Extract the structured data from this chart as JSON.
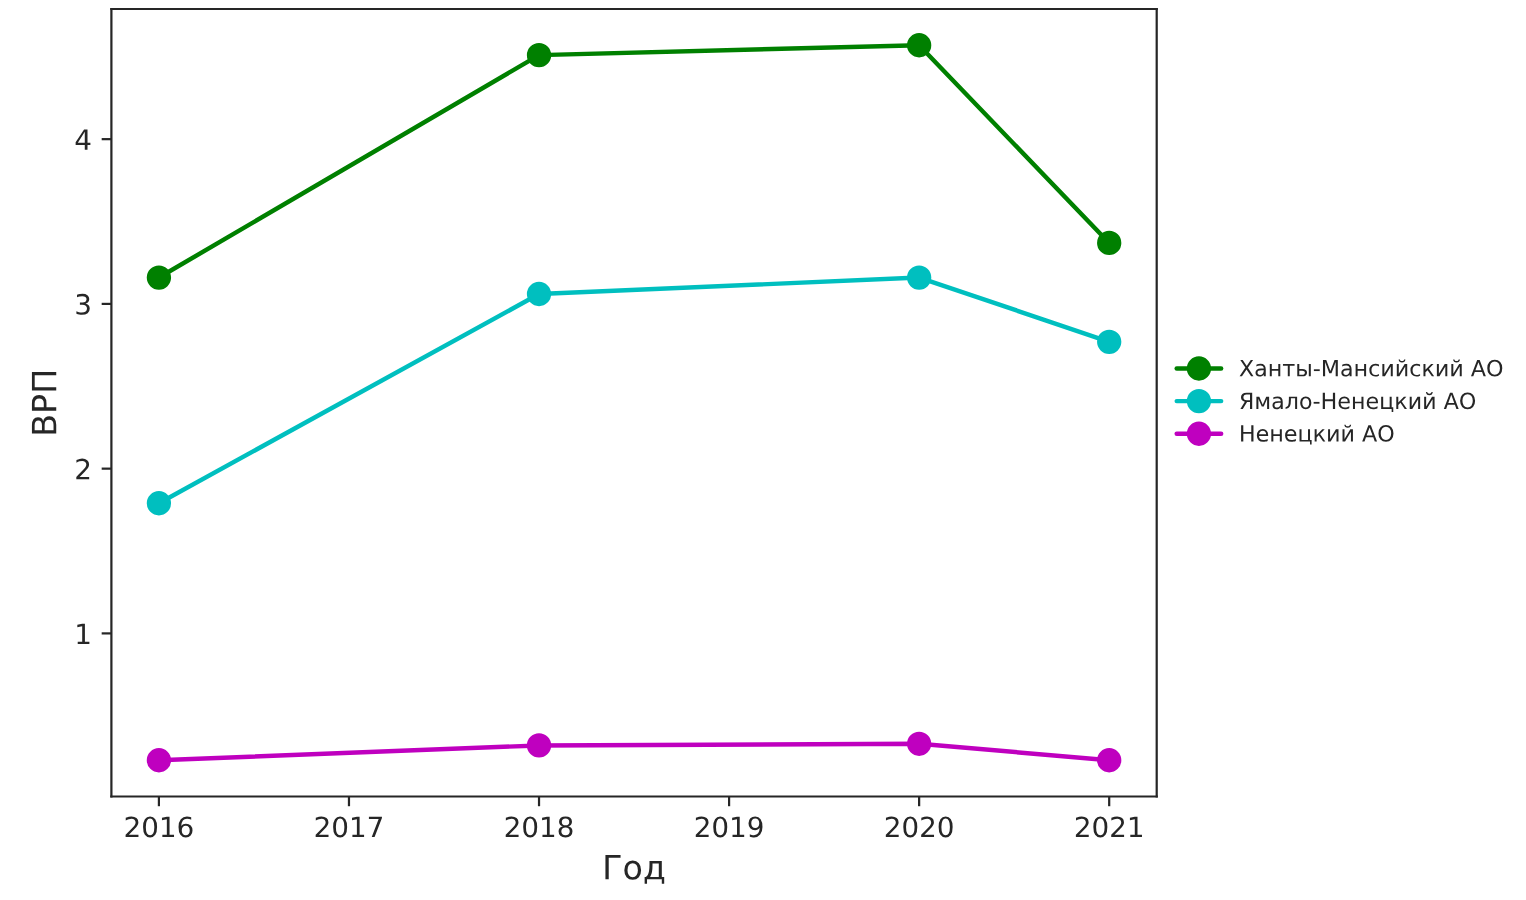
{
  "chart_data": {
    "type": "line",
    "xlabel": "Год",
    "ylabel": "ВРП",
    "x": [
      2016,
      2018,
      2020,
      2021
    ],
    "series": [
      {
        "name": "Ханты-Мансийский АО",
        "color": "#008000",
        "values": [
          3.16,
          4.51,
          4.57,
          3.37
        ]
      },
      {
        "name": "Ямало-Ненецкий АО",
        "color": "#00bfbf",
        "values": [
          1.79,
          3.06,
          3.16,
          2.77
        ]
      },
      {
        "name": "Ненецкий АО",
        "color": "#bf00bf",
        "values": [
          0.23,
          0.32,
          0.33,
          0.23
        ]
      }
    ],
    "xlim": [
      2015.75,
      2021.25
    ],
    "xticks": [
      2016,
      2017,
      2018,
      2019,
      2020,
      2021
    ],
    "ylim": [
      0.01,
      4.79
    ],
    "yticks": [
      1,
      2,
      3,
      4
    ],
    "marker": "circle",
    "line_style": "solid",
    "legend": "right",
    "grid": false
  }
}
